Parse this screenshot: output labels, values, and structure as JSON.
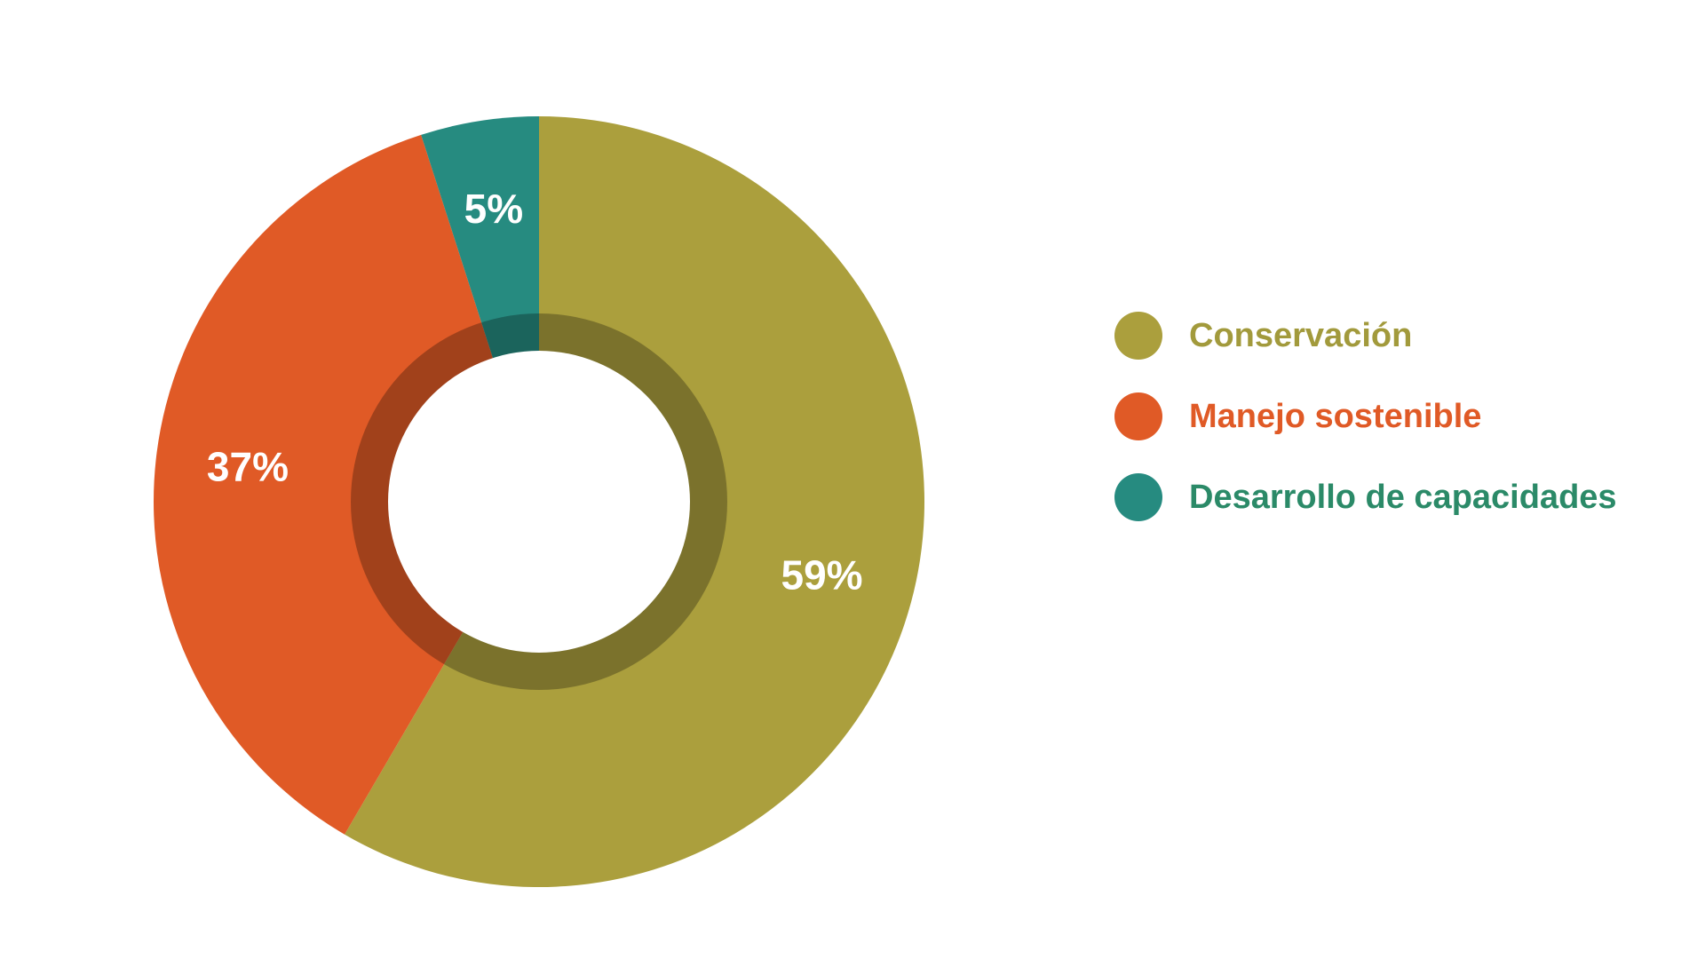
{
  "chart_data": {
    "type": "pie",
    "variant": "donut",
    "categories": [
      "Conservación",
      "Manejo sostenible",
      "Desarrollo de capacidades"
    ],
    "values": [
      59,
      37,
      5
    ],
    "value_labels": [
      "59%",
      "37%",
      "5%"
    ],
    "colors": [
      "#ab9f3d",
      "#e05a26",
      "#268b80"
    ],
    "legend_colors": [
      "#ab9f3d",
      "#e05a26",
      "#268b80"
    ],
    "legend_text_colors": [
      "#a29a3c",
      "#e05a26",
      "#2b8a68"
    ],
    "legend_position": "right",
    "title": ""
  }
}
